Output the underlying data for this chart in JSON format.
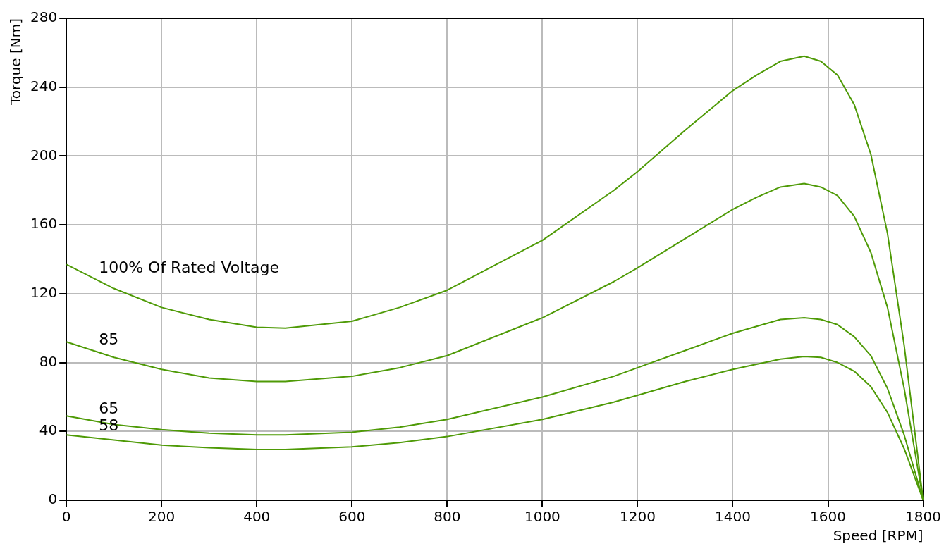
{
  "chart_data": {
    "type": "line",
    "xlabel": "Speed [RPM]",
    "ylabel": "Torque [Nm]",
    "xlim": [
      0,
      1800
    ],
    "xticks": [
      0,
      200,
      400,
      600,
      800,
      1000,
      1200,
      1400,
      1600,
      1800
    ],
    "ylim": [
      0,
      280
    ],
    "yticks": [
      0,
      40,
      80,
      120,
      160,
      200,
      240,
      280
    ],
    "grid": true,
    "legend": false,
    "marker": "none",
    "line_style": "solid",
    "series": [
      {
        "name": "100% Of Rated Voltage",
        "color": "#4e9a06",
        "x": [
          0,
          100,
          200,
          300,
          400,
          460,
          600,
          700,
          800,
          1000,
          1150,
          1200,
          1300,
          1400,
          1450,
          1500,
          1550,
          1585,
          1620,
          1655,
          1690,
          1725,
          1760,
          1800
        ],
        "values": [
          137,
          123,
          112,
          105,
          100.5,
          100,
          104,
          112,
          122,
          151,
          180,
          191,
          215,
          238,
          247,
          255,
          258,
          255,
          247,
          230,
          201,
          155,
          90,
          0
        ]
      },
      {
        "name": "85",
        "color": "#4e9a06",
        "x": [
          0,
          100,
          200,
          300,
          400,
          460,
          600,
          700,
          800,
          1000,
          1150,
          1200,
          1300,
          1400,
          1450,
          1500,
          1550,
          1585,
          1620,
          1655,
          1690,
          1725,
          1760,
          1800
        ],
        "values": [
          92,
          83,
          76,
          71,
          69,
          69,
          72,
          77,
          84,
          106,
          127,
          135,
          152,
          169,
          176,
          182,
          184,
          182,
          177,
          165,
          144,
          112,
          65,
          0
        ]
      },
      {
        "name": "65",
        "color": "#4e9a06",
        "x": [
          0,
          100,
          200,
          300,
          400,
          460,
          600,
          700,
          800,
          1000,
          1150,
          1200,
          1300,
          1400,
          1450,
          1500,
          1550,
          1585,
          1620,
          1655,
          1690,
          1725,
          1760,
          1800
        ],
        "values": [
          49,
          44,
          41,
          39,
          38,
          38,
          39.5,
          42.5,
          47,
          60,
          72,
          77,
          87,
          97,
          101,
          105,
          106,
          105,
          102,
          95,
          84,
          65,
          38,
          0
        ]
      },
      {
        "name": "58",
        "color": "#4e9a06",
        "x": [
          0,
          100,
          200,
          300,
          400,
          460,
          600,
          700,
          800,
          1000,
          1150,
          1200,
          1300,
          1400,
          1450,
          1500,
          1550,
          1585,
          1620,
          1655,
          1690,
          1725,
          1760,
          1800
        ],
        "values": [
          38,
          35,
          32,
          30.5,
          29.5,
          29.5,
          31,
          33.5,
          37,
          47,
          57,
          61,
          69,
          76,
          79,
          82,
          83.5,
          83,
          80,
          75,
          66,
          51,
          30,
          0
        ]
      }
    ]
  }
}
